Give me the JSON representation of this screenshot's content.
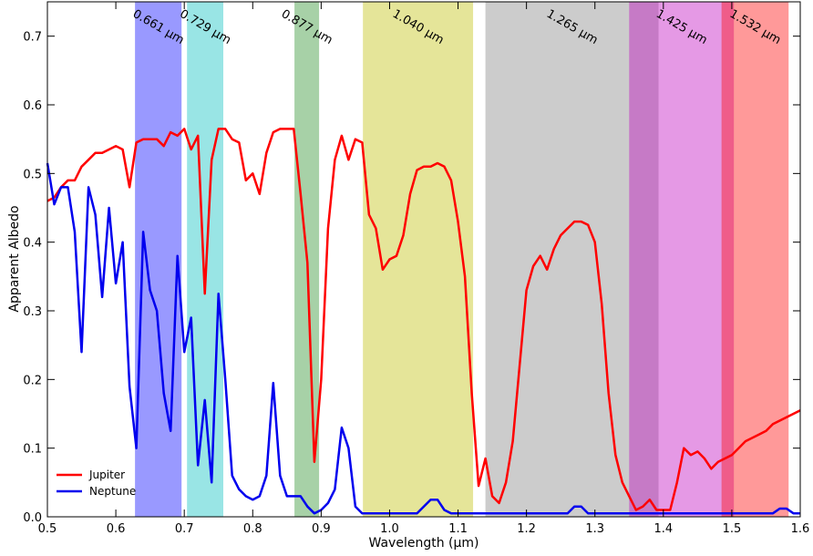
{
  "chart_data": {
    "type": "line",
    "xlabel": "Wavelength (μm)",
    "ylabel": "Apparent Albedo",
    "xlim": [
      0.5,
      1.6
    ],
    "ylim": [
      0,
      0.75
    ],
    "xticks": [
      0.5,
      0.6,
      0.7,
      0.8,
      0.9,
      {
        "value": 1,
        "label": "1.0"
      },
      1.1,
      1.2,
      1.3,
      1.4,
      1.5,
      1.6
    ],
    "yticks": [
      {
        "value": 0,
        "label": "0.0"
      },
      0.1,
      0.2,
      0.3,
      0.4,
      0.5,
      0.6,
      0.7
    ],
    "legend": "lower left",
    "band_opacity": 0.4,
    "bands": [
      {
        "label": "0.661 µm",
        "range": [
          0.628,
          0.696
        ],
        "color": "#0000ff"
      },
      {
        "label": "0.729 µm",
        "range": [
          0.704,
          0.757
        ],
        "color": "#00bfbf"
      },
      {
        "label": "0.877 µm",
        "range": [
          0.861,
          0.897
        ],
        "color": "#228b22"
      },
      {
        "label": "1.040 µm",
        "range": [
          0.961,
          1.122
        ],
        "color": "#bfbf00"
      },
      {
        "label": "1.265 µm",
        "range": [
          1.14,
          1.393
        ],
        "color": "#808080"
      },
      {
        "label": "1.425 µm",
        "range": [
          1.35,
          1.503
        ],
        "color": "#bf00bf"
      },
      {
        "label": "1.532 µm",
        "range": [
          1.485,
          1.583
        ],
        "color": "#ff0000"
      }
    ],
    "x": [
      0.5,
      0.51,
      0.52,
      0.53,
      0.54,
      0.55,
      0.56,
      0.57,
      0.58,
      0.59,
      0.6,
      0.61,
      0.62,
      0.63,
      0.64,
      0.65,
      0.66,
      0.67,
      0.68,
      0.69,
      0.7,
      0.71,
      0.72,
      0.73,
      0.74,
      0.75,
      0.76,
      0.77,
      0.78,
      0.79,
      0.8,
      0.81,
      0.82,
      0.83,
      0.84,
      0.85,
      0.86,
      0.87,
      0.88,
      0.89,
      0.9,
      0.91,
      0.92,
      0.93,
      0.94,
      0.95,
      0.96,
      0.97,
      0.98,
      0.99,
      1.0,
      1.01,
      1.02,
      1.03,
      1.04,
      1.05,
      1.06,
      1.07,
      1.08,
      1.09,
      1.1,
      1.11,
      1.12,
      1.13,
      1.14,
      1.15,
      1.16,
      1.17,
      1.18,
      1.19,
      1.2,
      1.21,
      1.22,
      1.23,
      1.24,
      1.25,
      1.26,
      1.27,
      1.28,
      1.29,
      1.3,
      1.31,
      1.32,
      1.33,
      1.34,
      1.35,
      1.36,
      1.37,
      1.38,
      1.39,
      1.4,
      1.41,
      1.42,
      1.43,
      1.44,
      1.45,
      1.46,
      1.47,
      1.48,
      1.49,
      1.5,
      1.51,
      1.52,
      1.53,
      1.54,
      1.55,
      1.56,
      1.57,
      1.58,
      1.59,
      1.6
    ],
    "series": [
      {
        "name": "Jupiter",
        "color": "#ff0000",
        "values": [
          0.46,
          0.465,
          0.48,
          0.49,
          0.49,
          0.51,
          0.52,
          0.53,
          0.53,
          0.535,
          0.54,
          0.535,
          0.48,
          0.545,
          0.55,
          0.55,
          0.55,
          0.54,
          0.56,
          0.555,
          0.565,
          0.535,
          0.555,
          0.325,
          0.52,
          0.565,
          0.565,
          0.55,
          0.545,
          0.49,
          0.5,
          0.47,
          0.53,
          0.56,
          0.565,
          0.565,
          0.565,
          0.47,
          0.37,
          0.08,
          0.2,
          0.42,
          0.52,
          0.555,
          0.52,
          0.55,
          0.545,
          0.44,
          0.42,
          0.36,
          0.375,
          0.38,
          0.41,
          0.47,
          0.505,
          0.51,
          0.51,
          0.515,
          0.51,
          0.49,
          0.43,
          0.35,
          0.18,
          0.045,
          0.085,
          0.03,
          0.02,
          0.05,
          0.11,
          0.22,
          0.33,
          0.365,
          0.38,
          0.36,
          0.39,
          0.41,
          0.42,
          0.43,
          0.43,
          0.425,
          0.4,
          0.31,
          0.18,
          0.09,
          0.05,
          0.03,
          0.01,
          0.015,
          0.025,
          0.01,
          0.01,
          0.01,
          0.05,
          0.1,
          0.09,
          0.095,
          0.085,
          0.07,
          0.08,
          0.085,
          0.09,
          0.1,
          0.11,
          0.115,
          0.12,
          0.125,
          0.135,
          0.14,
          0.145,
          0.15,
          0.155
        ]
      },
      {
        "name": "Neptune",
        "color": "#0000ee",
        "values": [
          0.515,
          0.455,
          0.48,
          0.48,
          0.415,
          0.24,
          0.48,
          0.44,
          0.32,
          0.45,
          0.34,
          0.4,
          0.19,
          0.1,
          0.415,
          0.33,
          0.3,
          0.18,
          0.125,
          0.38,
          0.24,
          0.29,
          0.075,
          0.17,
          0.05,
          0.325,
          0.2,
          0.06,
          0.04,
          0.03,
          0.025,
          0.03,
          0.06,
          0.195,
          0.06,
          0.03,
          0.03,
          0.03,
          0.015,
          0.005,
          0.01,
          0.02,
          0.04,
          0.13,
          0.1,
          0.015,
          0.005,
          0.005,
          0.005,
          0.005,
          0.005,
          0.005,
          0.005,
          0.005,
          0.005,
          0.015,
          0.025,
          0.025,
          0.01,
          0.005,
          0.005,
          0.005,
          0.005,
          0.005,
          0.005,
          0.005,
          0.005,
          0.005,
          0.005,
          0.005,
          0.005,
          0.005,
          0.005,
          0.005,
          0.005,
          0.005,
          0.005,
          0.015,
          0.015,
          0.005,
          0.005,
          0.005,
          0.005,
          0.005,
          0.005,
          0.005,
          0.005,
          0.005,
          0.005,
          0.005,
          0.005,
          0.005,
          0.005,
          0.005,
          0.005,
          0.005,
          0.005,
          0.005,
          0.005,
          0.005,
          0.005,
          0.005,
          0.005,
          0.005,
          0.005,
          0.005,
          0.005,
          0.012,
          0.012,
          0.005,
          0.005
        ]
      }
    ]
  }
}
